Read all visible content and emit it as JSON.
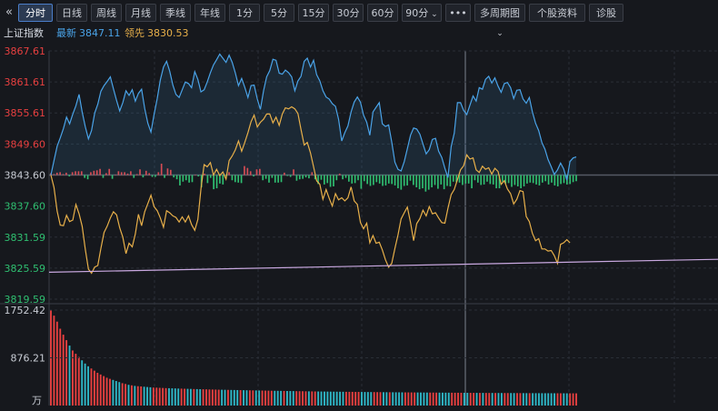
{
  "toolbar": {
    "collapse_glyph": "«",
    "buttons": [
      "分时",
      "日线",
      "周线",
      "月线",
      "季线",
      "年线",
      "1分",
      "5分",
      "15分",
      "30分",
      "60分",
      "90分",
      "•••",
      "多周期图",
      "个股资料",
      "诊股"
    ],
    "active": "分时",
    "dropdowns": [
      "90分",
      "多周期图"
    ]
  },
  "info": {
    "index_name": "上证指数",
    "latest_label": "最新",
    "latest_value": "3847.11",
    "leading_label": "领先",
    "leading_value": "3830.53"
  },
  "colors": {
    "background": "#16181d",
    "grid": "#2a2e36",
    "index_line": "#4aa3e8",
    "leading_line": "#e8b04a",
    "up": "#e84040",
    "down": "#2fbf71",
    "base_label": "#c8ccd4",
    "trend_line": "#c9a8e0"
  },
  "chart_data": [
    {
      "type": "line",
      "ylim": [
        3819.59,
        3867.61
      ],
      "base_value": 3843.6,
      "y_ticks_upper": [
        "3867.61",
        "3861.61",
        "3855.61",
        "3849.60"
      ],
      "y_tick_base": "3843.60",
      "y_ticks_lower": [
        "3837.60",
        "3831.59",
        "3825.59",
        "3819.59"
      ],
      "trend_line": {
        "from": 3824.8,
        "to": 3827.3
      },
      "series": [
        {
          "name": "最新",
          "values": [
            3843.6,
            3846.4,
            3849.2,
            3850.8,
            3852.6,
            3854.8,
            3853.5,
            3855.4,
            3857.0,
            3859.2,
            3855.8,
            3853.0,
            3850.6,
            3852.2,
            3855.6,
            3857.3,
            3859.8,
            3860.9,
            3861.7,
            3862.6,
            3860.3,
            3858.0,
            3856.0,
            3857.6,
            3859.9,
            3859.0,
            3860.1,
            3857.9,
            3859.4,
            3860.2,
            3856.5,
            3853.6,
            3851.9,
            3855.3,
            3858.4,
            3862.0,
            3864.5,
            3865.6,
            3863.7,
            3861.0,
            3859.2,
            3858.6,
            3860.1,
            3861.6,
            3861.3,
            3860.5,
            3863.6,
            3862.1,
            3859.7,
            3860.1,
            3861.6,
            3863.4,
            3864.9,
            3865.9,
            3867.0,
            3866.2,
            3865.4,
            3866.8,
            3865.4,
            3863.3,
            3860.9,
            3862.3,
            3860.6,
            3858.6,
            3860.9,
            3861.0,
            3858.3,
            3856.3,
            3859.9,
            3862.6,
            3863.8,
            3866.0,
            3865.8,
            3863.3,
            3863.1,
            3863.9,
            3863.4,
            3862.6,
            3859.9,
            3861.8,
            3862.7,
            3865.6,
            3866.2,
            3864.5,
            3865.8,
            3863.0,
            3861.8,
            3859.9,
            3858.7,
            3858.3,
            3857.4,
            3856.9,
            3854.4,
            3850.2,
            3851.8,
            3853.1,
            3855.8,
            3857.7,
            3858.7,
            3857.7,
            3855.2,
            3853.8,
            3851.3,
            3855.8,
            3856.7,
            3857.6,
            3853.5,
            3853.0,
            3853.3,
            3850.0,
            3846.1,
            3844.7,
            3844.4,
            3846.2,
            3848.7,
            3851.3,
            3852.7,
            3852.5,
            3851.5,
            3849.6,
            3847.7,
            3848.5,
            3850.5,
            3850.7,
            3848.2,
            3847.0,
            3844.9,
            3843.1,
            3849.1,
            3851.7,
            3857.6,
            3857.6,
            3856.1,
            3855.3,
            3857.1,
            3858.9,
            3857.9,
            3860.5,
            3860.2,
            3862.1,
            3862.7,
            3861.4,
            3862.4,
            3860.8,
            3859.6,
            3861.3,
            3861.5,
            3860.5,
            3858.4,
            3860.0,
            3860.1,
            3858.3,
            3857.5,
            3858.6,
            3855.8,
            3853.6,
            3852.2,
            3849.9,
            3848.6,
            3846.6,
            3845.2,
            3843.7,
            3844.6,
            3845.9,
            3844.8,
            3842.6,
            3846.2,
            3846.9,
            3847.1
          ]
        },
        {
          "name": "领先",
          "values": [
            3843.6,
            3841.2,
            3836.6,
            3833.9,
            3833.8,
            3835.8,
            3834.6,
            3834.9,
            3837.9,
            3836.1,
            3833.7,
            3829.3,
            3825.4,
            3824.6,
            3825.8,
            3826.1,
            3829.4,
            3832.5,
            3833.7,
            3835.3,
            3836.5,
            3835.9,
            3833.4,
            3831.6,
            3828.4,
            3830.4,
            3829.7,
            3832.2,
            3836.0,
            3833.8,
            3836.5,
            3838.1,
            3839.7,
            3837.5,
            3836.7,
            3835.3,
            3833.5,
            3836.7,
            3836.3,
            3835.7,
            3835.4,
            3834.5,
            3835.5,
            3834.5,
            3835.7,
            3834.0,
            3832.9,
            3835.0,
            3840.9,
            3845.6,
            3845.2,
            3846.0,
            3843.6,
            3844.7,
            3843.5,
            3844.2,
            3842.8,
            3846.4,
            3847.3,
            3848.5,
            3850.2,
            3848.2,
            3849.9,
            3851.8,
            3853.9,
            3855.2,
            3852.9,
            3853.8,
            3854.4,
            3855.4,
            3855.4,
            3853.7,
            3854.8,
            3853.2,
            3855.4,
            3856.6,
            3856.4,
            3856.8,
            3856.4,
            3855.5,
            3852.4,
            3849.4,
            3849.9,
            3847.9,
            3845.2,
            3842.5,
            3841.8,
            3838.9,
            3840.8,
            3839.1,
            3837.6,
            3840.0,
            3838.8,
            3839.2,
            3838.6,
            3839.2,
            3841.3,
            3838.6,
            3837.9,
            3834.4,
            3833.2,
            3834.3,
            3830.5,
            3831.9,
            3830.4,
            3830.6,
            3829.1,
            3827.2,
            3825.8,
            3826.5,
            3829.4,
            3832.0,
            3835.1,
            3836.3,
            3837.4,
            3834.4,
            3830.9,
            3834.2,
            3835.2,
            3836.8,
            3835.7,
            3837.5,
            3836.1,
            3836.3,
            3835.3,
            3834.4,
            3834.3,
            3837.2,
            3839.8,
            3840.8,
            3842.7,
            3844.6,
            3845.4,
            3847.5,
            3846.7,
            3846.9,
            3844.6,
            3844.1,
            3845.3,
            3844.7,
            3845.0,
            3843.8,
            3844.9,
            3844.3,
            3841.8,
            3842.5,
            3840.9,
            3840.0,
            3838.0,
            3838.9,
            3840.6,
            3840.4,
            3835.6,
            3834.6,
            3832.3,
            3830.9,
            3831.3,
            3829.3,
            3829.3,
            3828.9,
            3829.0,
            3828.0,
            3826.5,
            3830.2,
            3830.5,
            3831.1,
            3830.5
          ]
        }
      ],
      "diff_bars": [
        0.4,
        0.2,
        0.5,
        0.6,
        0.2,
        0.5,
        -0.3,
        0.6,
        0.8,
        0.8,
        0.8,
        -0.6,
        -0.9,
        0.6,
        0.9,
        1.0,
        1.3,
        -0.6,
        0.4,
        1.3,
        -0.8,
        0.1,
        0.8,
        0.6,
        0.6,
        0.3,
        0.8,
        -0.6,
        0.2,
        1.2,
        -0.5,
        0.9,
        0.4,
        -0.4,
        -0.4,
        0.6,
        2.4,
        -0.6,
        1.4,
        1.1,
        -0.5,
        -0.9,
        -2.2,
        -1.4,
        -1.1,
        -1.6,
        -1.5,
        0.1,
        -0.3,
        -2.6,
        0.3,
        -1.7,
        -0.6,
        -3.0,
        -2.8,
        -1.8,
        -2.0,
        -0.2,
        0.6,
        -1.1,
        -1.5,
        -1.6,
        -1.7,
        1.9,
        1.5,
        0.8,
        -0.3,
        1.2,
        1.3,
        -1.1,
        -0.8,
        -1.6,
        -0.6,
        -1.6,
        -1.6,
        -1.5,
        0.5,
        -0.2,
        -0.4,
        1.2,
        -1.2,
        -0.9,
        -0.8,
        -0.5,
        -0.7,
        0.6,
        -0.9,
        -1.9,
        -1.0,
        -2.0,
        -1.7,
        -2.5,
        -2.4,
        -1.1,
        0.3,
        -0.9,
        -0.6,
        -1.4,
        -1.8,
        -1.7,
        -1.1,
        -2.9,
        -1.3,
        -1.9,
        -2.3,
        -2.1,
        -1.5,
        -1.8,
        -2.3,
        -2.2,
        -1.8,
        -1.9,
        -2.2,
        -2.8,
        -3.1,
        -2.3,
        -2.2,
        -1.2,
        -2.1,
        -2.6,
        -3.0,
        -2.8,
        -3.5,
        -3.1,
        -2.6,
        -2.1,
        -2.9,
        -2.0,
        -3.0,
        -2.3,
        -2.4,
        -1.4,
        -1.5,
        -1.6,
        -2.1,
        -1.8,
        -1.8,
        -2.8,
        -1.1,
        -1.6,
        -2.1,
        -2.0,
        -1.4,
        -1.9,
        -2.0,
        -2.8,
        -2.8,
        -1.4,
        -1.8,
        -1.7,
        -2.5,
        -2.1,
        -2.4,
        -2.8,
        -2.4,
        -1.8,
        -1.6,
        -1.7,
        -2.0,
        -2.2,
        -1.6,
        -1.3,
        -2.0,
        -1.6,
        -2.2,
        -2.4,
        -1.9,
        -1.7,
        -2.0,
        -1.9,
        -1.5,
        -1.3
      ],
      "diff_bar_colors": "sign"
    },
    {
      "type": "bar",
      "ylim": [
        0,
        1752.42
      ],
      "y_ticks": [
        "1752.42",
        "876.21"
      ],
      "unit": "万",
      "values": [
        1752.4,
        1650.1,
        1540.2,
        1410.3,
        1300.5,
        1200.2,
        1100.6,
        1010.9,
        950.3,
        890.7,
        830.4,
        770.9,
        720.3,
        680.2,
        640.1,
        600.8,
        570.2,
        540.9,
        510.6,
        490.3,
        470.4,
        450.2,
        430.5,
        410.3,
        395.9,
        380.1,
        370.6,
        360.4,
        355.2,
        350.8,
        345.3,
        340.1,
        335.6,
        330.2,
        328.4,
        325.1,
        322.7,
        320.0,
        318.3,
        316.1,
        314.2,
        312.0,
        310.5,
        308.2,
        306.9,
        305.4,
        303.1,
        301.8,
        300.2,
        298.6,
        297.3,
        295.2,
        294.1,
        292.8,
        291.2,
        290.1,
        289.0,
        287.6,
        286.4,
        285.3,
        284.1,
        283.0,
        281.9,
        280.7,
        279.5,
        278.3,
        277.4,
        276.2,
        275.1,
        274.0,
        273.2,
        272.1,
        271.0,
        270.3,
        269.2,
        268.1,
        267.0,
        266.3,
        265.2,
        264.4,
        263.3,
        262.5,
        261.4,
        260.6,
        259.8,
        259.0,
        258.3,
        257.5,
        256.8,
        256.0,
        255.3,
        254.7,
        254.0,
        253.4,
        252.8,
        252.1,
        251.5,
        250.9,
        250.2,
        249.7,
        249.1,
        248.5,
        247.9,
        247.3,
        246.8,
        246.2,
        245.7,
        245.1,
        244.6,
        244.1,
        243.6,
        243.1,
        242.6,
        242.1,
        241.6,
        241.2,
        240.7,
        240.3,
        239.8,
        239.4,
        238.9,
        238.5,
        238.1,
        237.7,
        237.3,
        236.9,
        236.5,
        236.1,
        235.7,
        235.3,
        234.9,
        234.6,
        234.2,
        233.9,
        233.5,
        233.2,
        232.9,
        232.5,
        232.2,
        231.9,
        231.6,
        231.2,
        230.9,
        230.6,
        230.3,
        230.0,
        229.7,
        229.4,
        229.2,
        228.9,
        228.6,
        228.3,
        228.1,
        227.8,
        227.5,
        227.3,
        227.0,
        226.8,
        226.5,
        226.3,
        226.0,
        225.8,
        225.5,
        225.3,
        225.1,
        224.8,
        224.6,
        224.4,
        224.2,
        223.9
      ]
    }
  ]
}
